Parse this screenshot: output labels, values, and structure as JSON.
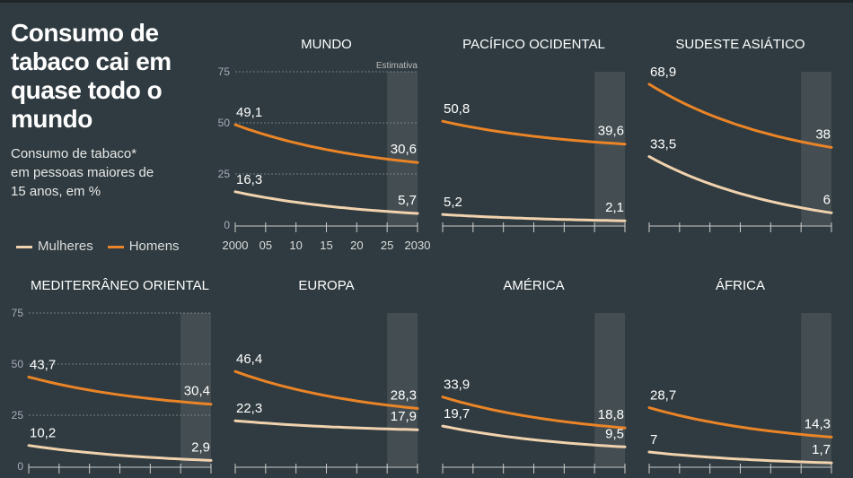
{
  "title": "Consumo de tabaco cai em quase todo o mundo",
  "subtitle": "Consumo de tabaco* em pessoas maiores de 15 anos, em %",
  "legend": {
    "women": "Mulheres",
    "men": "Homens"
  },
  "colors": {
    "women": "#f1d2ae",
    "men": "#ea8427",
    "background": "#2f3b40",
    "estimate": "#4a5456"
  },
  "estimate_label": "Estimativa",
  "chart_data": [
    {
      "type": "line",
      "title": "MUNDO",
      "x": [
        2000,
        2030
      ],
      "ylim": [
        0,
        75
      ],
      "yticks": [
        0,
        25,
        50,
        75
      ],
      "xticks": [
        "2000",
        "05",
        "10",
        "15",
        "20",
        "25",
        "2030"
      ],
      "estimate_range": [
        2025,
        2030
      ],
      "series": [
        {
          "name": "Mulheres",
          "values": [
            16.3,
            5.7
          ],
          "labels": [
            "16,3",
            "5,7"
          ]
        },
        {
          "name": "Homens",
          "values": [
            49.1,
            30.6
          ],
          "labels": [
            "49,1",
            "30,6"
          ]
        }
      ]
    },
    {
      "type": "line",
      "title": "PACÍFICO OCIDENTAL",
      "x": [
        2000,
        2030
      ],
      "ylim": [
        0,
        75
      ],
      "estimate_range": [
        2025,
        2030
      ],
      "series": [
        {
          "name": "Mulheres",
          "values": [
            5.2,
            2.1
          ],
          "labels": [
            "5,2",
            "2,1"
          ]
        },
        {
          "name": "Homens",
          "values": [
            50.8,
            39.6
          ],
          "labels": [
            "50,8",
            "39,6"
          ]
        }
      ]
    },
    {
      "type": "line",
      "title": "SUDESTE ASIÁTICO",
      "x": [
        2000,
        2030
      ],
      "ylim": [
        0,
        75
      ],
      "estimate_range": [
        2025,
        2030
      ],
      "series": [
        {
          "name": "Mulheres",
          "values": [
            33.5,
            6
          ],
          "labels": [
            "33,5",
            "6"
          ]
        },
        {
          "name": "Homens",
          "values": [
            68.9,
            38
          ],
          "labels": [
            "68,9",
            "38"
          ]
        }
      ]
    },
    {
      "type": "line",
      "title": "MEDITERRÂNEO ORIENTAL",
      "x": [
        2000,
        2030
      ],
      "ylim": [
        0,
        75
      ],
      "yticks": [
        0,
        25,
        50,
        75
      ],
      "estimate_range": [
        2025,
        2030
      ],
      "series": [
        {
          "name": "Mulheres",
          "values": [
            10.2,
            2.9
          ],
          "labels": [
            "10,2",
            "2,9"
          ]
        },
        {
          "name": "Homens",
          "values": [
            43.7,
            30.4
          ],
          "labels": [
            "43,7",
            "30,4"
          ]
        }
      ]
    },
    {
      "type": "line",
      "title": "EUROPA",
      "x": [
        2000,
        2030
      ],
      "ylim": [
        0,
        75
      ],
      "estimate_range": [
        2025,
        2030
      ],
      "series": [
        {
          "name": "Mulheres",
          "values": [
            22.3,
            17.9
          ],
          "labels": [
            "22,3",
            "17,9"
          ]
        },
        {
          "name": "Homens",
          "values": [
            46.4,
            28.3
          ],
          "labels": [
            "46,4",
            "28,3"
          ]
        }
      ]
    },
    {
      "type": "line",
      "title": "AMÉRICA",
      "x": [
        2000,
        2030
      ],
      "ylim": [
        0,
        75
      ],
      "estimate_range": [
        2025,
        2030
      ],
      "series": [
        {
          "name": "Mulheres",
          "values": [
            19.7,
            9.5
          ],
          "labels": [
            "19,7",
            "9,5"
          ]
        },
        {
          "name": "Homens",
          "values": [
            33.9,
            18.8
          ],
          "labels": [
            "33,9",
            "18,8"
          ]
        }
      ]
    },
    {
      "type": "line",
      "title": "ÁFRICA",
      "x": [
        2000,
        2030
      ],
      "ylim": [
        0,
        75
      ],
      "estimate_range": [
        2025,
        2030
      ],
      "series": [
        {
          "name": "Mulheres",
          "values": [
            7,
            1.7
          ],
          "labels": [
            "7",
            "1,7"
          ]
        },
        {
          "name": "Homens",
          "values": [
            28.7,
            14.3
          ],
          "labels": [
            "28,7",
            "14,3"
          ]
        }
      ]
    }
  ]
}
